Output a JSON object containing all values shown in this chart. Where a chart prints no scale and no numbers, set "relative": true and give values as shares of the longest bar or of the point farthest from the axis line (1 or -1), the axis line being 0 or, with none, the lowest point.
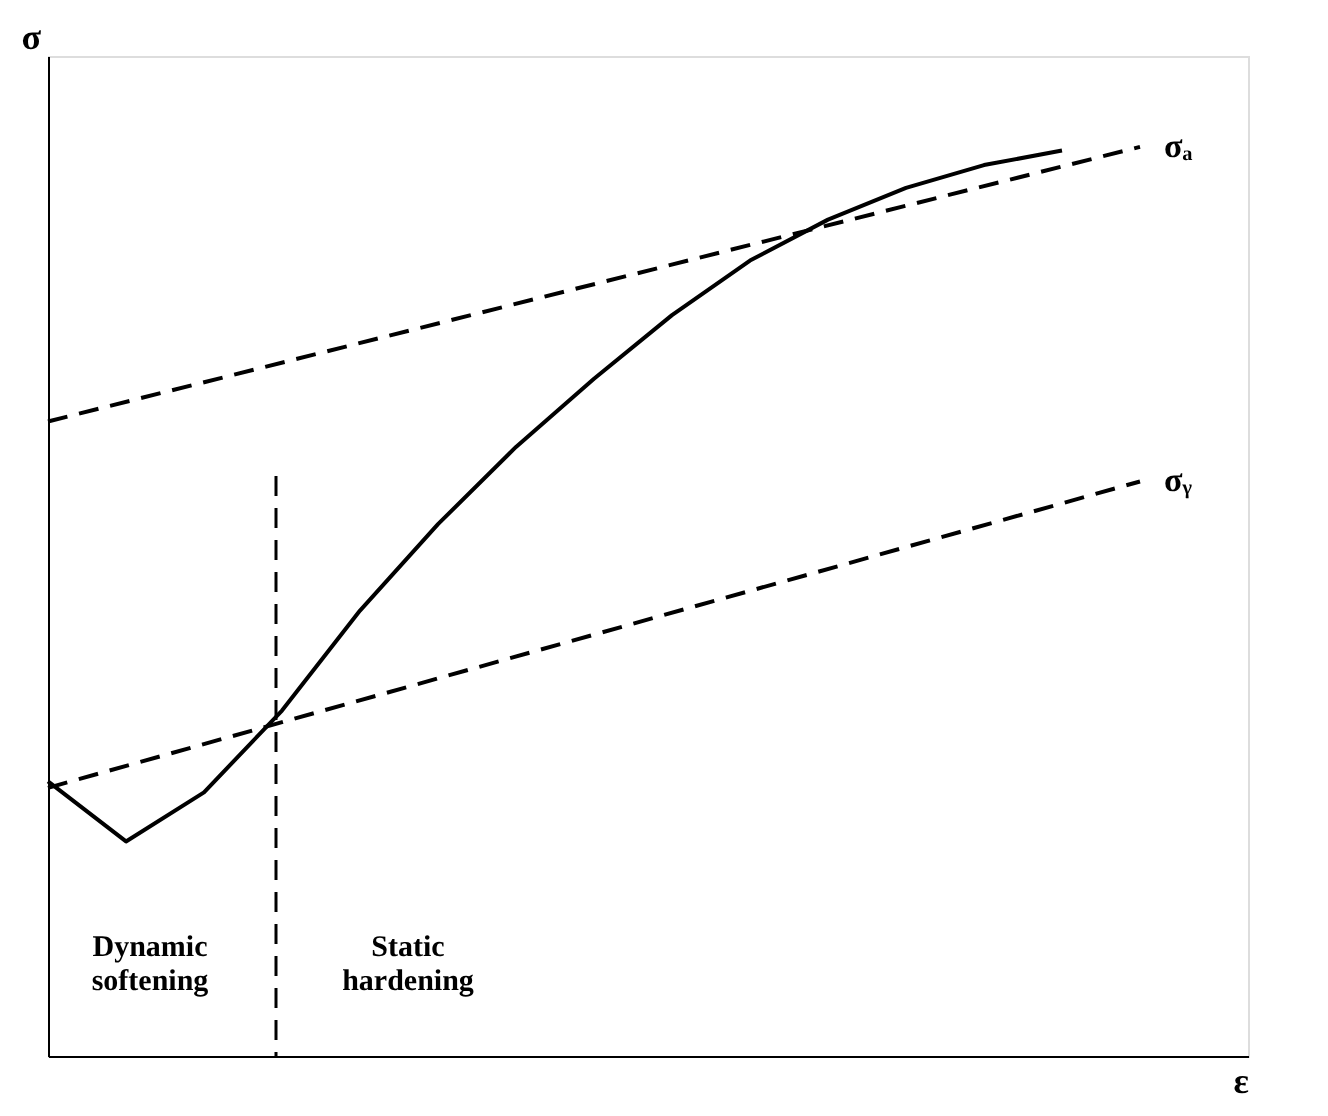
{
  "chart_data": {
    "type": "line",
    "relative": true,
    "xlabel": "ε",
    "ylabel": "σ",
    "legend": false,
    "marker": "none",
    "categories": [
      null,
      null,
      null,
      null,
      null,
      null,
      null,
      null,
      null,
      null,
      null,
      null,
      null,
      null,
      null
    ],
    "series": [
      {
        "color": "#000000",
        "line_style": "solid",
        "values": [
          0.302,
          0.236,
          0.29,
          0.38,
          0.49,
          0.585,
          0.67,
          0.745,
          0.815,
          0.875,
          0.92,
          0.955,
          0.98,
          0.996,
          null
        ]
      },
      {
        "name": "σₐ",
        "color": "#000000",
        "line_style": "dashed",
        "values": [
          0.698,
          null,
          null,
          null,
          null,
          null,
          null,
          null,
          null,
          null,
          null,
          null,
          null,
          null,
          1.0
        ]
      },
      {
        "name": "σᵧ",
        "color": "#000000",
        "line_style": "dashed",
        "values": [
          0.295,
          null,
          null,
          null,
          null,
          null,
          null,
          null,
          null,
          null,
          null,
          null,
          null,
          null,
          0.632
        ]
      }
    ],
    "ref_lines": [
      {
        "axis": "x",
        "color": "#000000",
        "line_style": "dashed"
      }
    ],
    "annotations": [
      "Dynamic softening",
      "Static hardening"
    ]
  }
}
